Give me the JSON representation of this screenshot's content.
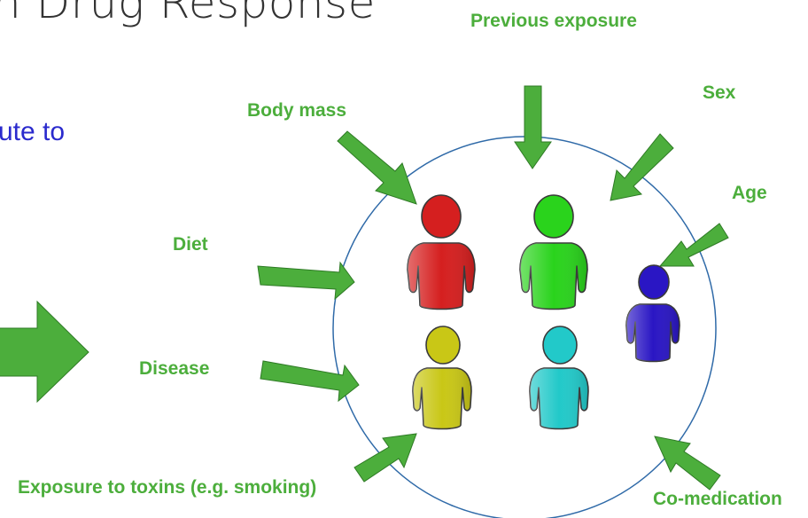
{
  "slide": {
    "title_fragment": "n Drug Response",
    "body_fragment": "ute to"
  },
  "factors": {
    "previous_exposure": "Previous exposure",
    "sex": "Sex",
    "body_mass": "Body mass",
    "age": "Age",
    "diet": "Diet",
    "disease": "Disease",
    "exposure_to_toxins": "Exposure to toxins (e.g. smoking)",
    "co_medication": "Co-medication"
  },
  "colors": {
    "arrow_fill": "#4cae3c",
    "arrow_stroke": "#2e7a25",
    "factor_text": "#4cae3c",
    "circle_stroke": "#2f6aa8",
    "title_text": "#333333",
    "body_text": "#2a2acd",
    "person_red": "#d51f1f",
    "person_green": "#2ad31c",
    "person_blue": "#2a16c4",
    "person_yellow": "#c9c716",
    "person_cyan": "#22c9c9"
  },
  "icons": [
    "arrow-icon",
    "person-icon"
  ]
}
